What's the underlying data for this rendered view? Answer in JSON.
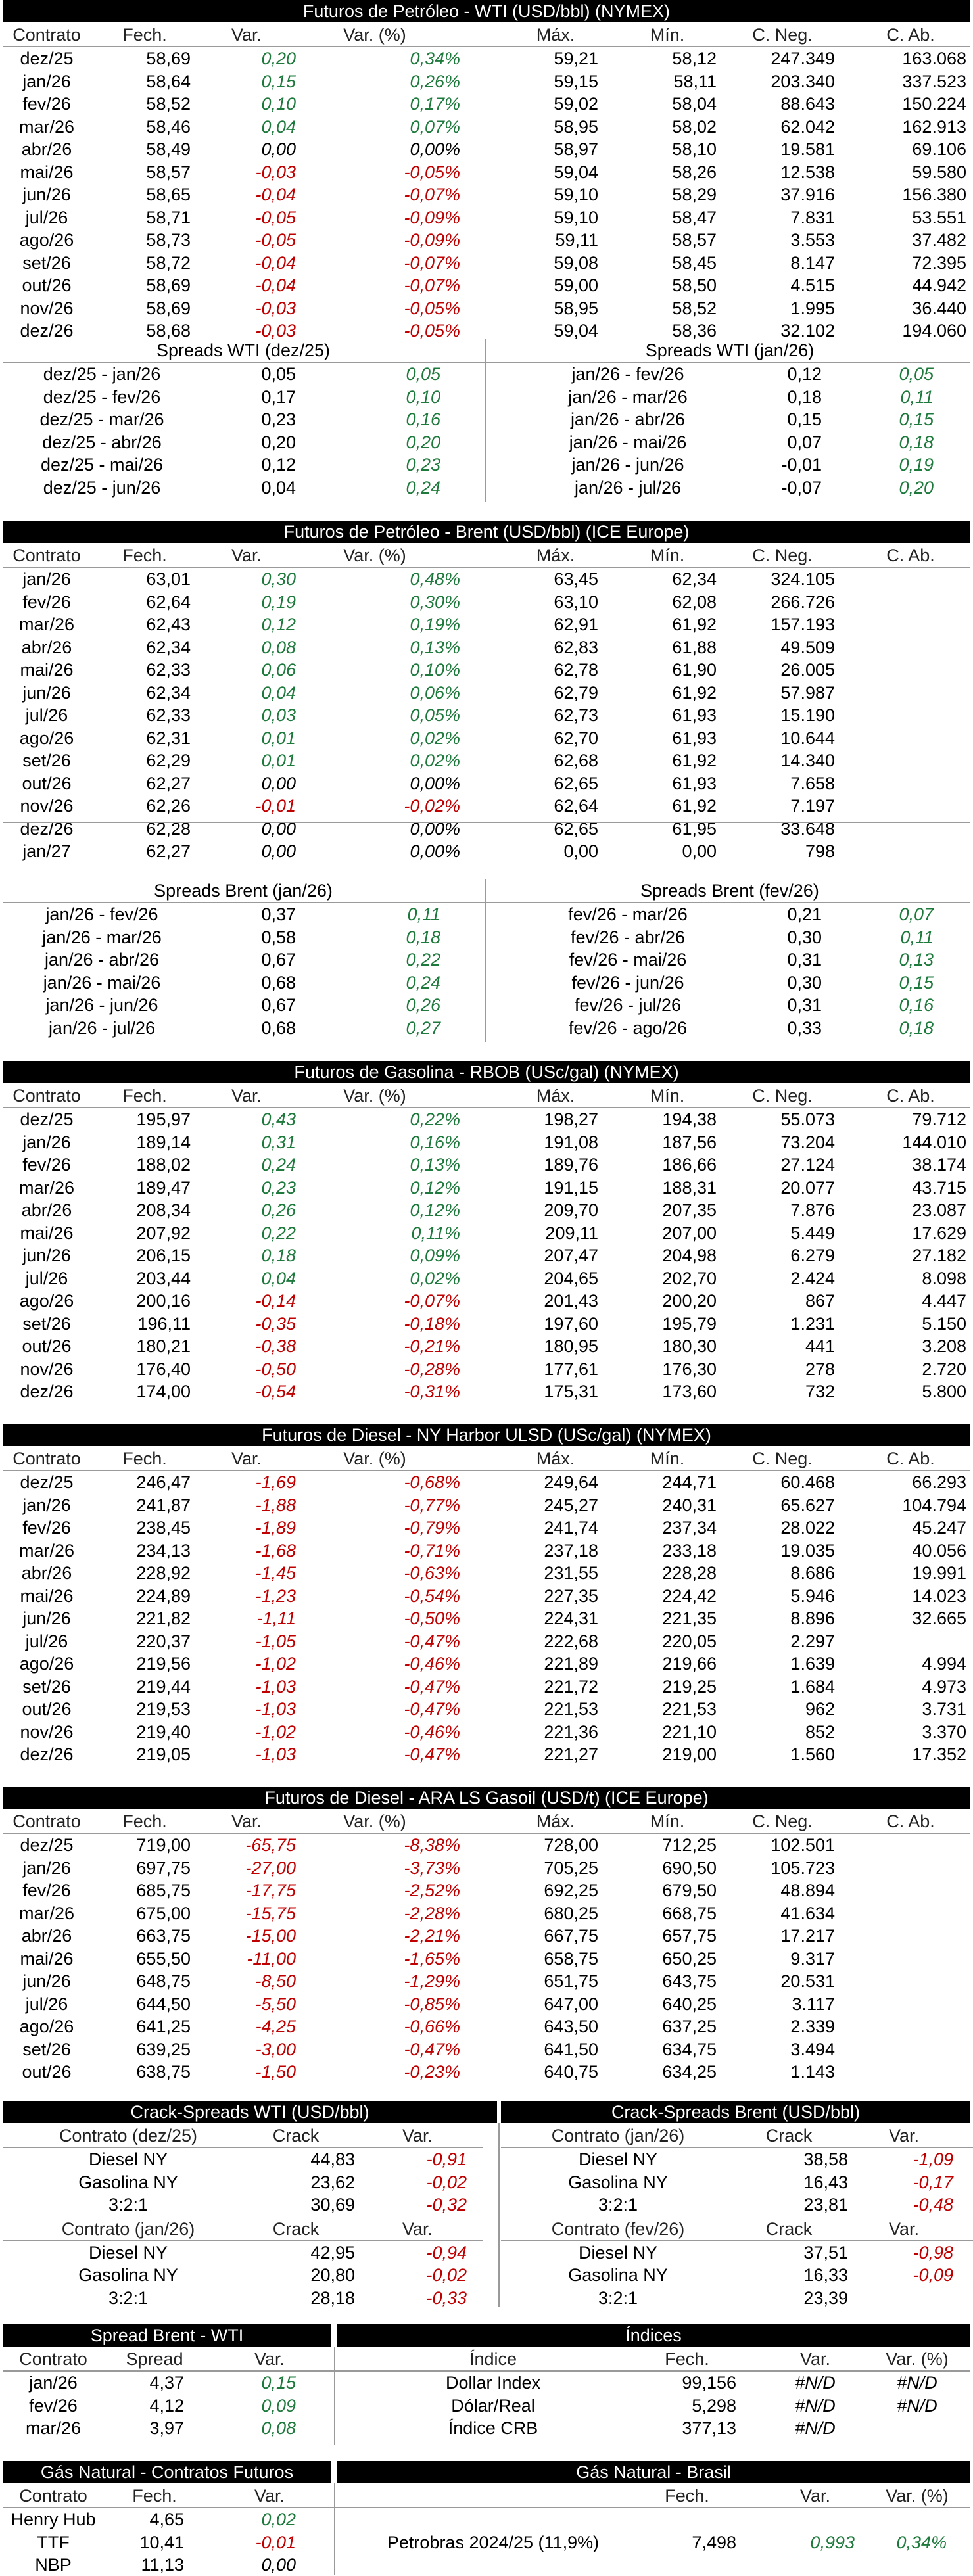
{
  "wti": {
    "title": "Futuros de Petróleo - WTI (USD/bbl) (NYMEX)",
    "headers": [
      "Contrato",
      "Fech.",
      "Var.",
      "Var. (%)",
      "Máx.",
      "Mín.",
      "C. Neg.",
      "C. Ab."
    ],
    "rows": [
      [
        "dez/25",
        "58,69",
        "0,20",
        "0,34%",
        "59,21",
        "58,12",
        "247.349",
        "163.068"
      ],
      [
        "jan/26",
        "58,64",
        "0,15",
        "0,26%",
        "59,15",
        "58,11",
        "203.340",
        "337.523"
      ],
      [
        "fev/26",
        "58,52",
        "0,10",
        "0,17%",
        "59,02",
        "58,04",
        "88.643",
        "150.224"
      ],
      [
        "mar/26",
        "58,46",
        "0,04",
        "0,07%",
        "58,95",
        "58,02",
        "62.042",
        "162.913"
      ],
      [
        "abr/26",
        "58,49",
        "0,00",
        "0,00%",
        "58,97",
        "58,10",
        "19.581",
        "69.106"
      ],
      [
        "mai/26",
        "58,57",
        "-0,03",
        "-0,05%",
        "59,04",
        "58,26",
        "12.538",
        "59.580"
      ],
      [
        "jun/26",
        "58,65",
        "-0,04",
        "-0,07%",
        "59,10",
        "58,29",
        "37.916",
        "156.380"
      ],
      [
        "jul/26",
        "58,71",
        "-0,05",
        "-0,09%",
        "59,10",
        "58,47",
        "7.831",
        "53.551"
      ],
      [
        "ago/26",
        "58,73",
        "-0,05",
        "-0,09%",
        "59,11",
        "58,57",
        "3.553",
        "37.482"
      ],
      [
        "set/26",
        "58,72",
        "-0,04",
        "-0,07%",
        "59,08",
        "58,45",
        "8.147",
        "72.395"
      ],
      [
        "out/26",
        "58,69",
        "-0,04",
        "-0,07%",
        "59,00",
        "58,50",
        "4.515",
        "44.942"
      ],
      [
        "nov/26",
        "58,69",
        "-0,03",
        "-0,05%",
        "58,95",
        "58,52",
        "1.995",
        "36.440"
      ],
      [
        "dez/26",
        "58,68",
        "-0,03",
        "-0,05%",
        "59,04",
        "58,36",
        "32.102",
        "194.060"
      ]
    ],
    "spreads_left_title": "Spreads WTI (dez/25)",
    "spreads_left": [
      [
        "dez/25 - jan/26",
        "0,05",
        "0,05"
      ],
      [
        "dez/25 - fev/26",
        "0,17",
        "0,10"
      ],
      [
        "dez/25 - mar/26",
        "0,23",
        "0,16"
      ],
      [
        "dez/25 - abr/26",
        "0,20",
        "0,20"
      ],
      [
        "dez/25 - mai/26",
        "0,12",
        "0,23"
      ],
      [
        "dez/25 - jun/26",
        "0,04",
        "0,24"
      ]
    ],
    "spreads_right_title": "Spreads WTI (jan/26)",
    "spreads_right": [
      [
        "jan/26 - fev/26",
        "0,12",
        "0,05"
      ],
      [
        "jan/26 - mar/26",
        "0,18",
        "0,11"
      ],
      [
        "jan/26 - abr/26",
        "0,15",
        "0,15"
      ],
      [
        "jan/26 - mai/26",
        "0,07",
        "0,18"
      ],
      [
        "jan/26 - jun/26",
        "-0,01",
        "0,19"
      ],
      [
        "jan/26 - jul/26",
        "-0,07",
        "0,20"
      ]
    ]
  },
  "brent": {
    "title": "Futuros de Petróleo - Brent (USD/bbl) (ICE Europe)",
    "headers": [
      "Contrato",
      "Fech.",
      "Var.",
      "Var. (%)",
      "Máx.",
      "Mín.",
      "C. Neg.",
      "C. Ab."
    ],
    "rows": [
      [
        "jan/26",
        "63,01",
        "0,30",
        "0,48%",
        "63,45",
        "62,34",
        "324.105",
        ""
      ],
      [
        "fev/26",
        "62,64",
        "0,19",
        "0,30%",
        "63,10",
        "62,08",
        "266.726",
        ""
      ],
      [
        "mar/26",
        "62,43",
        "0,12",
        "0,19%",
        "62,91",
        "61,92",
        "157.193",
        ""
      ],
      [
        "abr/26",
        "62,34",
        "0,08",
        "0,13%",
        "62,83",
        "61,88",
        "49.509",
        ""
      ],
      [
        "mai/26",
        "62,33",
        "0,06",
        "0,10%",
        "62,78",
        "61,90",
        "26.005",
        ""
      ],
      [
        "jun/26",
        "62,34",
        "0,04",
        "0,06%",
        "62,79",
        "61,92",
        "57.987",
        ""
      ],
      [
        "jul/26",
        "62,33",
        "0,03",
        "0,05%",
        "62,73",
        "61,93",
        "15.190",
        ""
      ],
      [
        "ago/26",
        "62,31",
        "0,01",
        "0,02%",
        "62,70",
        "61,93",
        "10.644",
        ""
      ],
      [
        "set/26",
        "62,29",
        "0,01",
        "0,02%",
        "62,68",
        "61,92",
        "14.340",
        ""
      ],
      [
        "out/26",
        "62,27",
        "0,00",
        "0,00%",
        "62,65",
        "61,93",
        "7.658",
        ""
      ],
      [
        "nov/26",
        "62,26",
        "-0,01",
        "-0,02%",
        "62,64",
        "61,92",
        "7.197",
        ""
      ],
      [
        "dez/26",
        "62,28",
        "0,00",
        "0,00%",
        "62,65",
        "61,95",
        "33.648",
        ""
      ],
      [
        "jan/27",
        "62,27",
        "0,00",
        "0,00%",
        "0,00",
        "0,00",
        "798",
        ""
      ]
    ],
    "spreads_left_title": "Spreads Brent (jan/26)",
    "spreads_left": [
      [
        "jan/26 - fev/26",
        "0,37",
        "0,11"
      ],
      [
        "jan/26 - mar/26",
        "0,58",
        "0,18"
      ],
      [
        "jan/26 - abr/26",
        "0,67",
        "0,22"
      ],
      [
        "jan/26 - mai/26",
        "0,68",
        "0,24"
      ],
      [
        "jan/26 - jun/26",
        "0,67",
        "0,26"
      ],
      [
        "jan/26 - jul/26",
        "0,68",
        "0,27"
      ]
    ],
    "spreads_right_title": "Spreads Brent (fev/26)",
    "spreads_right": [
      [
        "fev/26 - mar/26",
        "0,21",
        "0,07"
      ],
      [
        "fev/26 - abr/26",
        "0,30",
        "0,11"
      ],
      [
        "fev/26 - mai/26",
        "0,31",
        "0,13"
      ],
      [
        "fev/26 - jun/26",
        "0,30",
        "0,15"
      ],
      [
        "fev/26 - jul/26",
        "0,31",
        "0,16"
      ],
      [
        "fev/26 - ago/26",
        "0,33",
        "0,18"
      ]
    ]
  },
  "rbob": {
    "title": "Futuros de Gasolina - RBOB (USc/gal) (NYMEX)",
    "headers": [
      "Contrato",
      "Fech.",
      "Var.",
      "Var. (%)",
      "Máx.",
      "Mín.",
      "C. Neg.",
      "C. Ab."
    ],
    "rows": [
      [
        "dez/25",
        "195,97",
        "0,43",
        "0,22%",
        "198,27",
        "194,38",
        "55.073",
        "79.712"
      ],
      [
        "jan/26",
        "189,14",
        "0,31",
        "0,16%",
        "191,08",
        "187,56",
        "73.204",
        "144.010"
      ],
      [
        "fev/26",
        "188,02",
        "0,24",
        "0,13%",
        "189,76",
        "186,66",
        "27.124",
        "38.174"
      ],
      [
        "mar/26",
        "189,47",
        "0,23",
        "0,12%",
        "191,15",
        "188,31",
        "20.077",
        "43.715"
      ],
      [
        "abr/26",
        "208,34",
        "0,26",
        "0,12%",
        "209,70",
        "207,35",
        "7.876",
        "23.087"
      ],
      [
        "mai/26",
        "207,92",
        "0,22",
        "0,11%",
        "209,11",
        "207,00",
        "5.449",
        "17.629"
      ],
      [
        "jun/26",
        "206,15",
        "0,18",
        "0,09%",
        "207,47",
        "204,98",
        "6.279",
        "27.182"
      ],
      [
        "jul/26",
        "203,44",
        "0,04",
        "0,02%",
        "204,65",
        "202,70",
        "2.424",
        "8.098"
      ],
      [
        "ago/26",
        "200,16",
        "-0,14",
        "-0,07%",
        "201,43",
        "200,20",
        "867",
        "4.447"
      ],
      [
        "set/26",
        "196,11",
        "-0,35",
        "-0,18%",
        "197,60",
        "195,79",
        "1.231",
        "5.150"
      ],
      [
        "out/26",
        "180,21",
        "-0,38",
        "-0,21%",
        "180,95",
        "180,30",
        "441",
        "3.208"
      ],
      [
        "nov/26",
        "176,40",
        "-0,50",
        "-0,28%",
        "177,61",
        "176,30",
        "278",
        "2.720"
      ],
      [
        "dez/26",
        "174,00",
        "-0,54",
        "-0,31%",
        "175,31",
        "173,60",
        "732",
        "5.800"
      ]
    ]
  },
  "ulsd": {
    "title": "Futuros de Diesel - NY Harbor ULSD (USc/gal) (NYMEX)",
    "headers": [
      "Contrato",
      "Fech.",
      "Var.",
      "Var. (%)",
      "Máx.",
      "Mín.",
      "C. Neg.",
      "C. Ab."
    ],
    "rows": [
      [
        "dez/25",
        "246,47",
        "-1,69",
        "-0,68%",
        "249,64",
        "244,71",
        "60.468",
        "66.293"
      ],
      [
        "jan/26",
        "241,87",
        "-1,88",
        "-0,77%",
        "245,27",
        "240,31",
        "65.627",
        "104.794"
      ],
      [
        "fev/26",
        "238,45",
        "-1,89",
        "-0,79%",
        "241,74",
        "237,34",
        "28.022",
        "45.247"
      ],
      [
        "mar/26",
        "234,13",
        "-1,68",
        "-0,71%",
        "237,18",
        "233,18",
        "19.035",
        "40.056"
      ],
      [
        "abr/26",
        "228,92",
        "-1,45",
        "-0,63%",
        "231,55",
        "228,28",
        "8.686",
        "19.991"
      ],
      [
        "mai/26",
        "224,89",
        "-1,23",
        "-0,54%",
        "227,35",
        "224,42",
        "5.946",
        "14.023"
      ],
      [
        "jun/26",
        "221,82",
        "-1,11",
        "-0,50%",
        "224,31",
        "221,35",
        "8.896",
        "32.665"
      ],
      [
        "jul/26",
        "220,37",
        "-1,05",
        "-0,47%",
        "222,68",
        "220,05",
        "2.297",
        ""
      ],
      [
        "ago/26",
        "219,56",
        "-1,02",
        "-0,46%",
        "221,89",
        "219,66",
        "1.639",
        "4.994"
      ],
      [
        "set/26",
        "219,44",
        "-1,03",
        "-0,47%",
        "221,72",
        "219,25",
        "1.684",
        "4.973"
      ],
      [
        "out/26",
        "219,53",
        "-1,03",
        "-0,47%",
        "221,53",
        "221,53",
        "962",
        "3.731"
      ],
      [
        "nov/26",
        "219,40",
        "-1,02",
        "-0,46%",
        "221,36",
        "221,10",
        "852",
        "3.370"
      ],
      [
        "dez/26",
        "219,05",
        "-1,03",
        "-0,47%",
        "221,27",
        "219,00",
        "1.560",
        "17.352"
      ]
    ]
  },
  "gasoil": {
    "title": "Futuros de Diesel - ARA LS Gasoil (USD/t) (ICE Europe)",
    "headers": [
      "Contrato",
      "Fech.",
      "Var.",
      "Var. (%)",
      "Máx.",
      "Mín.",
      "C. Neg.",
      "C. Ab."
    ],
    "rows": [
      [
        "dez/25",
        "719,00",
        "-65,75",
        "-8,38%",
        "728,00",
        "712,25",
        "102.501",
        ""
      ],
      [
        "jan/26",
        "697,75",
        "-27,00",
        "-3,73%",
        "705,25",
        "690,50",
        "105.723",
        ""
      ],
      [
        "fev/26",
        "685,75",
        "-17,75",
        "-2,52%",
        "692,25",
        "679,50",
        "48.894",
        ""
      ],
      [
        "mar/26",
        "675,00",
        "-15,75",
        "-2,28%",
        "680,25",
        "668,75",
        "41.634",
        ""
      ],
      [
        "abr/26",
        "663,75",
        "-15,00",
        "-2,21%",
        "667,75",
        "657,75",
        "17.217",
        ""
      ],
      [
        "mai/26",
        "655,50",
        "-11,00",
        "-1,65%",
        "658,75",
        "650,25",
        "9.317",
        ""
      ],
      [
        "jun/26",
        "648,75",
        "-8,50",
        "-1,29%",
        "651,75",
        "643,75",
        "20.531",
        ""
      ],
      [
        "jul/26",
        "644,50",
        "-5,50",
        "-0,85%",
        "647,00",
        "640,25",
        "3.117",
        ""
      ],
      [
        "ago/26",
        "641,25",
        "-4,25",
        "-0,66%",
        "643,50",
        "637,25",
        "2.339",
        ""
      ],
      [
        "set/26",
        "639,25",
        "-3,00",
        "-0,47%",
        "641,50",
        "634,75",
        "3.494",
        ""
      ],
      [
        "out/26",
        "638,75",
        "-1,50",
        "-0,23%",
        "640,75",
        "634,25",
        "1.143",
        ""
      ]
    ]
  },
  "crack": {
    "left_title": "Crack-Spreads WTI (USD/bbl)",
    "right_title": "Crack-Spreads Brent (USD/bbl)",
    "left_blocks": [
      {
        "h": [
          "Contrato (dez/25)",
          "Crack",
          "Var."
        ],
        "rows": [
          [
            "Diesel NY",
            "44,83",
            "-0,91"
          ],
          [
            "Gasolina NY",
            "23,62",
            "-0,02"
          ],
          [
            "3:2:1",
            "30,69",
            "-0,32"
          ]
        ]
      },
      {
        "h": [
          "Contrato (jan/26)",
          "Crack",
          "Var."
        ],
        "rows": [
          [
            "Diesel NY",
            "42,95",
            "-0,94"
          ],
          [
            "Gasolina NY",
            "20,80",
            "-0,02"
          ],
          [
            "3:2:1",
            "28,18",
            "-0,33"
          ]
        ]
      }
    ],
    "right_blocks": [
      {
        "h": [
          "Contrato (jan/26)",
          "Crack",
          "Var."
        ],
        "rows": [
          [
            "Diesel NY",
            "38,58",
            "-1,09"
          ],
          [
            "Gasolina NY",
            "16,43",
            "-0,17"
          ],
          [
            "3:2:1",
            "23,81",
            "-0,48"
          ]
        ]
      },
      {
        "h": [
          "Contrato (fev/26)",
          "Crack",
          "Var."
        ],
        "rows": [
          [
            "Diesel NY",
            "37,51",
            "-0,98"
          ],
          [
            "Gasolina NY",
            "16,33",
            "-0,09"
          ],
          [
            "3:2:1",
            "23,39",
            ""
          ]
        ]
      }
    ]
  },
  "spread_bw": {
    "title": "Spread Brent - WTI",
    "headers": [
      "Contrato",
      "Spread",
      "Var."
    ],
    "rows": [
      [
        "jan/26",
        "4,37",
        "0,15"
      ],
      [
        "fev/26",
        "4,12",
        "0,09"
      ],
      [
        "mar/26",
        "3,97",
        "0,08"
      ]
    ]
  },
  "indices": {
    "title": "Índices",
    "headers": [
      "Índice",
      "Fech.",
      "Var.",
      "Var. (%)"
    ],
    "rows": [
      [
        "Dollar Index",
        "99,156",
        "#N/D",
        "#N/D"
      ],
      [
        "Dólar/Real",
        "5,298",
        "#N/D",
        "#N/D"
      ],
      [
        "Índice CRB",
        "377,13",
        "#N/D",
        ""
      ]
    ]
  },
  "gas_futures": {
    "title": "Gás Natural - Contratos Futuros",
    "headers": [
      "Contrato",
      "Fech.",
      "Var."
    ],
    "rows": [
      [
        "Henry Hub",
        "4,65",
        "0,02"
      ],
      [
        "TTF",
        "10,41",
        "-0,01"
      ],
      [
        "NBP",
        "11,13",
        "0,00"
      ]
    ]
  },
  "gas_brasil": {
    "title": "Gás Natural - Brasil",
    "headers": [
      "",
      "Fech.",
      "Var.",
      "Var. (%)"
    ],
    "rows": [
      [
        "Petrobras 2024/25 (11,9%)",
        "7,498",
        "0,993",
        "0,34%"
      ]
    ]
  }
}
